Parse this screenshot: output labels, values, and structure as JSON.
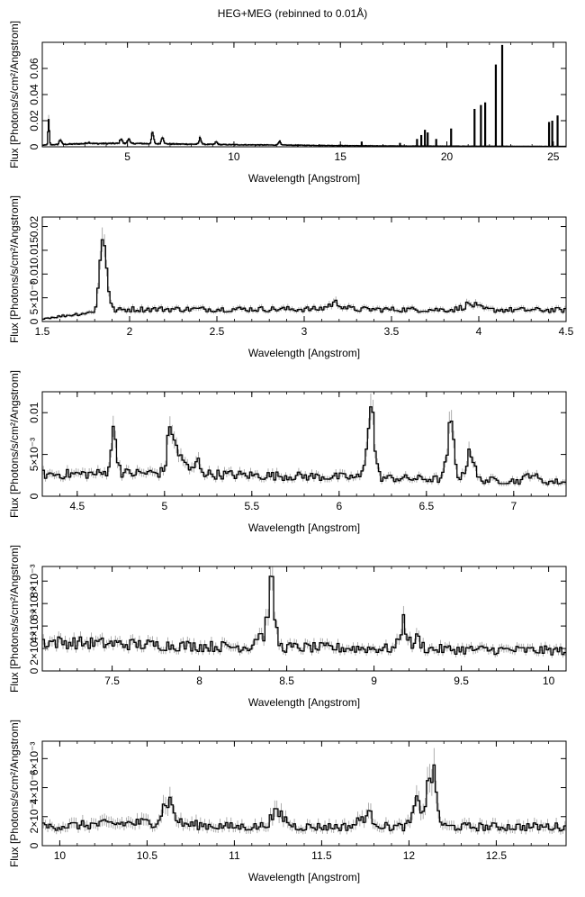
{
  "figure": {
    "title": "HEG+MEG (rebinned to 0.01Å)"
  },
  "colors": {
    "line": "#000000",
    "error": "#9a9a9a",
    "frame": "#000000",
    "background": "#ffffff"
  },
  "chart_data": [
    {
      "type": "line",
      "xlabel": "Wavelength [Angstrom]",
      "ylabel": "Flux [Photons/s/cm²/Angstrom]",
      "xlim": [
        1.0,
        25.6
      ],
      "ylim": [
        0,
        0.08
      ],
      "xticks": [
        5,
        10,
        15,
        20,
        25
      ],
      "xtick_labels": [
        "5",
        "10",
        "15",
        "20",
        "25"
      ],
      "yticks": [
        0,
        0.02,
        0.04,
        0.06
      ],
      "ytick_labels": [
        "0",
        "0.02",
        "0.04",
        "0.06"
      ],
      "continuum": [
        [
          1.0,
          0.0012
        ],
        [
          1.5,
          0.0016
        ],
        [
          3,
          0.0024
        ],
        [
          5,
          0.0026
        ],
        [
          7,
          0.0022
        ],
        [
          10,
          0.0016
        ],
        [
          13,
          0.0012
        ],
        [
          16,
          0.0008
        ],
        [
          18,
          0.0006
        ],
        [
          25.6,
          0.0003
        ]
      ],
      "peaks": [
        [
          1.3,
          0.018,
          0.03
        ],
        [
          1.85,
          0.004,
          0.05
        ],
        [
          3.18,
          0.0008,
          0.1
        ],
        [
          4.7,
          0.004,
          0.05
        ],
        [
          5.05,
          0.004,
          0.05
        ],
        [
          6.18,
          0.008,
          0.05
        ],
        [
          6.65,
          0.006,
          0.05
        ],
        [
          8.42,
          0.005,
          0.05
        ],
        [
          9.17,
          0.002,
          0.05
        ],
        [
          12.13,
          0.003,
          0.05
        ]
      ],
      "spikes": [
        [
          16.0,
          0.004
        ],
        [
          17.8,
          0.003
        ],
        [
          18.6,
          0.006
        ],
        [
          18.8,
          0.009
        ],
        [
          18.97,
          0.013
        ],
        [
          19.1,
          0.011
        ],
        [
          19.5,
          0.006
        ],
        [
          20.2,
          0.014
        ],
        [
          21.3,
          0.029
        ],
        [
          21.6,
          0.032
        ],
        [
          21.8,
          0.034
        ],
        [
          22.3,
          0.063
        ],
        [
          22.6,
          0.078
        ],
        [
          24.8,
          0.019
        ],
        [
          24.95,
          0.02
        ],
        [
          25.2,
          0.024
        ]
      ]
    },
    {
      "type": "line",
      "xlabel": "Wavelength [Angstrom]",
      "ylabel": "Flux [Photons/s/cm²/Angstrom]",
      "xlim": [
        1.5,
        4.5
      ],
      "ylim": [
        0,
        0.022
      ],
      "xticks": [
        1.5,
        2,
        2.5,
        3,
        3.5,
        4,
        4.5
      ],
      "xtick_labels": [
        "1.5",
        "2",
        "2.5",
        "3",
        "3.5",
        "4",
        "4.5"
      ],
      "yticks": [
        0,
        0.005,
        0.01,
        0.015,
        0.02
      ],
      "ytick_labels": [
        "0",
        "5×10⁻³",
        "0.01",
        "0.015",
        "0.02"
      ],
      "continuum": [
        [
          1.5,
          0.0006
        ],
        [
          1.75,
          0.0018
        ],
        [
          2.0,
          0.0026
        ],
        [
          3.0,
          0.0026
        ],
        [
          4.5,
          0.0024
        ]
      ],
      "peaks": [
        [
          1.85,
          0.016,
          0.02
        ],
        [
          3.18,
          0.0013,
          0.04
        ],
        [
          3.95,
          0.0011,
          0.04
        ]
      ]
    },
    {
      "type": "line",
      "xlabel": "Wavelength [Angstrom]",
      "ylabel": "Flux [Photons/s/cm²/Angstrom]",
      "xlim": [
        4.3,
        7.3
      ],
      "ylim": [
        0,
        0.0125
      ],
      "xticks": [
        4.5,
        5,
        5.5,
        6,
        6.5,
        7
      ],
      "xtick_labels": [
        "4.5",
        "5",
        "5.5",
        "6",
        "6.5",
        "7"
      ],
      "yticks": [
        0,
        0.005,
        0.01
      ],
      "ytick_labels": [
        "0",
        "5×10⁻³",
        "0.01"
      ],
      "continuum": [
        [
          4.3,
          0.0026
        ],
        [
          5.0,
          0.0028
        ],
        [
          5.5,
          0.0025
        ],
        [
          6.0,
          0.0023
        ],
        [
          7.3,
          0.0017
        ]
      ],
      "peaks": [
        [
          4.71,
          0.0047,
          0.018
        ],
        [
          5.04,
          0.0058,
          0.02
        ],
        [
          5.1,
          0.002,
          0.02
        ],
        [
          5.19,
          0.0014,
          0.02
        ],
        [
          6.18,
          0.0088,
          0.02
        ],
        [
          6.64,
          0.006,
          0.02
        ],
        [
          6.75,
          0.0038,
          0.02
        ],
        [
          7.1,
          0.001,
          0.025
        ]
      ]
    },
    {
      "type": "line",
      "xlabel": "Wavelength [Angstrom]",
      "ylabel": "Flux [Photons/s/cm²/Angstrom]",
      "xlim": [
        7.1,
        10.1
      ],
      "ylim": [
        0,
        0.0093
      ],
      "xticks": [
        7.5,
        8,
        8.5,
        9,
        9.5,
        10
      ],
      "xtick_labels": [
        "7.5",
        "8",
        "8.5",
        "9",
        "9.5",
        "10"
      ],
      "yticks": [
        0,
        0.002,
        0.004,
        0.006,
        0.008
      ],
      "ytick_labels": [
        "0",
        "2×10⁻³",
        "4×10⁻³",
        "6×10⁻³",
        "8×10⁻³"
      ],
      "continuum": [
        [
          7.1,
          0.0026
        ],
        [
          8.0,
          0.0022
        ],
        [
          9.0,
          0.002
        ],
        [
          10.1,
          0.0018
        ]
      ],
      "peaks": [
        [
          8.41,
          0.0053,
          0.02
        ],
        [
          8.34,
          0.0012,
          0.02
        ],
        [
          9.17,
          0.0024,
          0.02
        ],
        [
          9.25,
          0.0009,
          0.02
        ]
      ]
    },
    {
      "type": "line",
      "xlabel": "Wavelength [Angstrom]",
      "ylabel": "Flux [Photons/s/cm²/Angstrom]",
      "xlim": [
        9.9,
        12.9
      ],
      "ylim": [
        0,
        0.0072
      ],
      "xticks": [
        10,
        10.5,
        11,
        11.5,
        12,
        12.5
      ],
      "xtick_labels": [
        "10",
        "10.5",
        "11",
        "11.5",
        "12",
        "12.5"
      ],
      "yticks": [
        0,
        0.002,
        0.004,
        0.006
      ],
      "ytick_labels": [
        "0",
        "2×10⁻³",
        "4×10⁻³",
        "6×10⁻³"
      ],
      "continuum": [
        [
          9.9,
          0.0013
        ],
        [
          10.5,
          0.0016
        ],
        [
          11.0,
          0.0013
        ],
        [
          12.0,
          0.0013
        ],
        [
          12.9,
          0.0013
        ]
      ],
      "peaks": [
        [
          10.62,
          0.0016,
          0.03
        ],
        [
          11.25,
          0.0009,
          0.04
        ],
        [
          11.76,
          0.0008,
          0.04
        ],
        [
          12.05,
          0.0016,
          0.025
        ],
        [
          12.13,
          0.0038,
          0.025
        ]
      ]
    }
  ]
}
